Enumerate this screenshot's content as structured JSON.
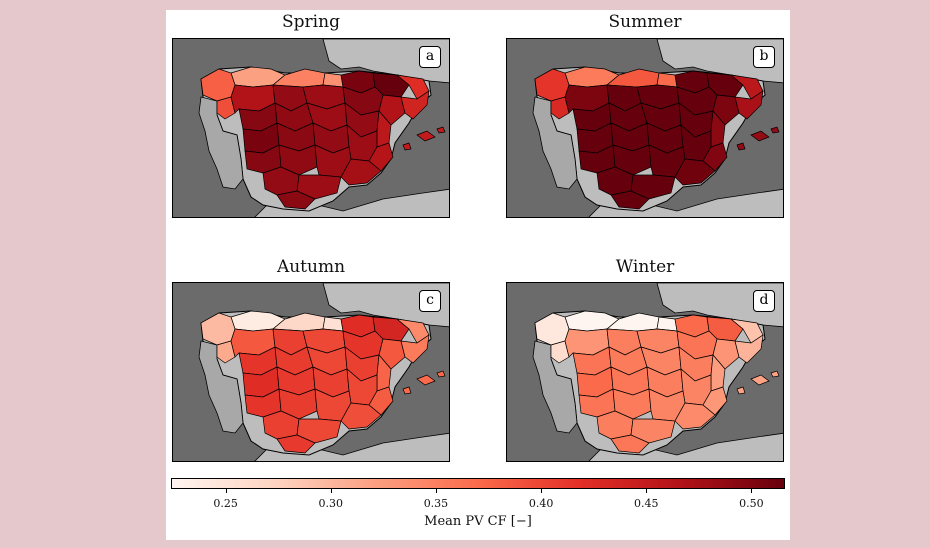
{
  "panels": [
    {
      "id": "spring",
      "title": "Spring",
      "letter": "a",
      "level": 0.88
    },
    {
      "id": "summer",
      "title": "Summer",
      "letter": "b",
      "level": 1.0
    },
    {
      "id": "autumn",
      "title": "Autumn",
      "letter": "c",
      "level": 0.6
    },
    {
      "id": "winter",
      "title": "Winter",
      "letter": "d",
      "level": 0.42
    }
  ],
  "colorbar": {
    "label": "Mean PV CF [−]",
    "min": 0.224,
    "max": 0.516,
    "ticks": [
      "0.25",
      "0.30",
      "0.35",
      "0.40",
      "0.45",
      "0.50"
    ],
    "colors": [
      "#fff5f0",
      "#fdd4c2",
      "#fc9f81",
      "#fb6b4b",
      "#e32f27",
      "#b11218",
      "#67000d"
    ]
  },
  "colors": {
    "sea": "#6b6b6b",
    "land_hillshade": "#bdbdbd",
    "background": "#e5c8cb"
  }
}
